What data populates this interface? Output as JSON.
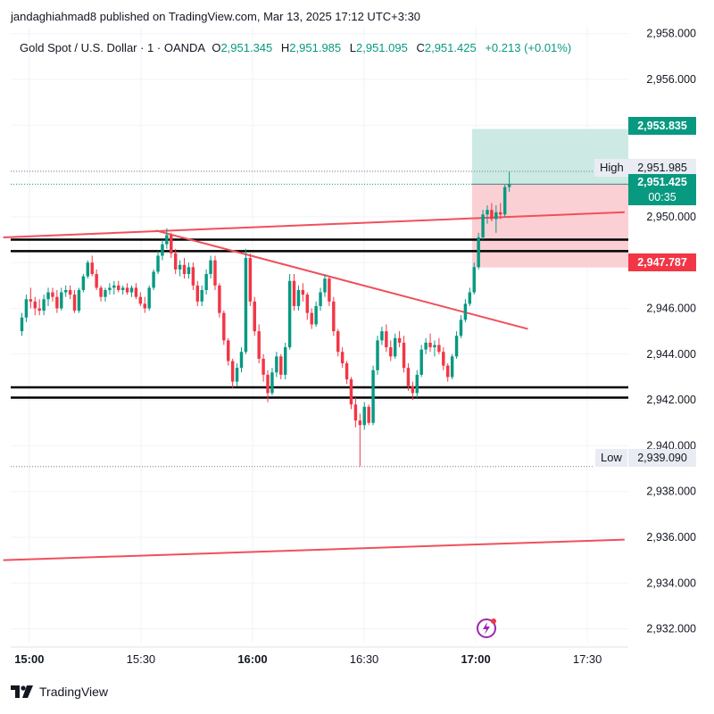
{
  "header": {
    "publisher_line": "jandaghiahmad8 published on TradingView.com, Mar 13, 2025 17:12 UTC+3:30"
  },
  "symbol": {
    "name": "Gold Spot / U.S. Dollar · 1 · OANDA",
    "o_label": "O",
    "o_value": "2,951.345",
    "h_label": "H",
    "h_value": "2,951.985",
    "l_label": "L",
    "l_value": "2,951.095",
    "c_label": "C",
    "c_value": "2,951.425",
    "change": "+0.213 (+0.01%)"
  },
  "price_tags": {
    "target": "2,953.835",
    "current": "2,951.425",
    "countdown": "00:35",
    "stop": "2,947.787"
  },
  "high": {
    "label": "High",
    "value": "2,951.985"
  },
  "low": {
    "label": "Low",
    "value": "2,939.090"
  },
  "footer": {
    "brand": "TradingView"
  },
  "colors": {
    "up": "#089981",
    "down": "#f23645",
    "trendline": "#f0505a",
    "target_zone": "#cce9e3",
    "stop_zone": "#fbd0d4",
    "level": "#000000"
  },
  "chart_data": {
    "type": "candlestick",
    "y_axis": {
      "ticks": [
        "2,958.000",
        "2,956.000",
        "2,954.000",
        "2,952.000",
        "2,950.000",
        "2,948.000",
        "2,946.000",
        "2,944.000",
        "2,942.000",
        "2,940.000",
        "2,938.000",
        "2,936.000",
        "2,934.000",
        "2,932.000"
      ],
      "tick_values": [
        2958,
        2956,
        2954,
        2952,
        2950,
        2948,
        2946,
        2944,
        2942,
        2940,
        2938,
        2936,
        2934,
        2932
      ],
      "range": [
        2931.4,
        2958.3
      ],
      "position": "right"
    },
    "x_axis": {
      "ticks": [
        "15:00",
        "15:30",
        "16:00",
        "16:30",
        "17:00",
        "17:30"
      ],
      "tick_minutes": [
        0,
        30,
        60,
        90,
        120,
        150
      ],
      "range_minutes": [
        -5,
        161
      ]
    },
    "horizontal_levels": [
      2949.0,
      2948.5,
      2942.55,
      2942.1
    ],
    "trendlines": [
      {
        "from": [
          -7,
          2949.1
        ],
        "to": [
          160,
          2950.2
        ]
      },
      {
        "from": [
          34,
          2949.4
        ],
        "to": [
          134,
          2945.1
        ]
      },
      {
        "from": [
          -7,
          2935.0
        ],
        "to": [
          160,
          2935.9
        ]
      }
    ],
    "position_tool": {
      "from_minute": 119,
      "to_minute": 161,
      "entry": 2951.425,
      "target": 2953.835,
      "stop": 2947.787
    },
    "high": 2951.985,
    "low": 2939.09,
    "candles": [
      [
        2945.0,
        2945.8,
        2944.8,
        2945.6
      ],
      [
        2945.6,
        2946.6,
        2945.4,
        2946.4
      ],
      [
        2946.4,
        2946.9,
        2946.0,
        2946.3
      ],
      [
        2946.3,
        2946.5,
        2945.7,
        2946.0
      ],
      [
        2946.0,
        2946.4,
        2945.7,
        2945.9
      ],
      [
        2945.9,
        2946.6,
        2945.7,
        2946.4
      ],
      [
        2946.4,
        2946.9,
        2946.1,
        2946.7
      ],
      [
        2946.7,
        2946.9,
        2946.3,
        2946.5
      ],
      [
        2946.5,
        2946.8,
        2945.8,
        2946.0
      ],
      [
        2946.0,
        2946.9,
        2945.9,
        2946.7
      ],
      [
        2946.7,
        2947.0,
        2946.5,
        2946.8
      ],
      [
        2946.8,
        2947.0,
        2946.4,
        2946.6
      ],
      [
        2946.6,
        2946.8,
        2945.8,
        2945.9
      ],
      [
        2945.9,
        2946.9,
        2945.8,
        2946.8
      ],
      [
        2946.8,
        2947.5,
        2946.7,
        2947.4
      ],
      [
        2947.4,
        2948.1,
        2947.3,
        2948.0
      ],
      [
        2948.0,
        2948.3,
        2947.4,
        2947.5
      ],
      [
        2947.5,
        2947.7,
        2946.8,
        2946.9
      ],
      [
        2946.9,
        2947.0,
        2946.3,
        2946.5
      ],
      [
        2946.5,
        2946.9,
        2946.3,
        2946.8
      ],
      [
        2946.8,
        2947.1,
        2946.6,
        2946.9
      ],
      [
        2946.9,
        2947.2,
        2946.6,
        2947.0
      ],
      [
        2947.0,
        2947.2,
        2946.7,
        2946.8
      ],
      [
        2946.8,
        2947.0,
        2946.6,
        2946.9
      ],
      [
        2946.9,
        2947.1,
        2946.6,
        2946.7
      ],
      [
        2946.7,
        2947.0,
        2946.5,
        2946.9
      ],
      [
        2946.9,
        2947.1,
        2946.4,
        2946.5
      ],
      [
        2946.5,
        2946.7,
        2946.1,
        2946.2
      ],
      [
        2946.2,
        2946.5,
        2945.8,
        2946.0
      ],
      [
        2946.0,
        2947.0,
        2945.9,
        2946.9
      ],
      [
        2946.9,
        2947.7,
        2946.8,
        2947.6
      ],
      [
        2947.6,
        2948.5,
        2947.5,
        2948.3
      ],
      [
        2948.3,
        2949.0,
        2948.1,
        2948.8
      ],
      [
        2948.8,
        2949.5,
        2948.6,
        2949.2
      ],
      [
        2949.2,
        2949.3,
        2948.2,
        2948.4
      ],
      [
        2948.4,
        2948.6,
        2947.5,
        2947.7
      ],
      [
        2947.7,
        2948.1,
        2947.4,
        2947.9
      ],
      [
        2947.9,
        2948.2,
        2947.3,
        2947.5
      ],
      [
        2947.5,
        2948.0,
        2947.3,
        2947.8
      ],
      [
        2947.8,
        2948.0,
        2946.8,
        2947.0
      ],
      [
        2947.0,
        2947.2,
        2946.1,
        2946.3
      ],
      [
        2946.3,
        2947.0,
        2946.1,
        2946.8
      ],
      [
        2946.8,
        2947.7,
        2946.6,
        2947.5
      ],
      [
        2947.5,
        2948.3,
        2947.3,
        2948.1
      ],
      [
        2948.1,
        2948.3,
        2946.8,
        2947.0
      ],
      [
        2947.0,
        2947.1,
        2945.6,
        2945.8
      ],
      [
        2945.8,
        2945.9,
        2944.4,
        2944.6
      ],
      [
        2944.6,
        2944.7,
        2943.5,
        2943.7
      ],
      [
        2943.7,
        2943.8,
        2942.5,
        2942.8
      ],
      [
        2942.8,
        2943.6,
        2942.6,
        2943.4
      ],
      [
        2943.4,
        2944.3,
        2943.2,
        2944.1
      ],
      [
        2944.1,
        2948.6,
        2944.0,
        2948.2
      ],
      [
        2948.2,
        2948.4,
        2946.1,
        2946.3
      ],
      [
        2946.3,
        2946.5,
        2944.8,
        2945.0
      ],
      [
        2945.0,
        2945.3,
        2943.6,
        2943.8
      ],
      [
        2943.8,
        2944.0,
        2942.8,
        2943.1
      ],
      [
        2943.1,
        2943.3,
        2941.9,
        2942.3
      ],
      [
        2942.3,
        2943.4,
        2942.2,
        2943.2
      ],
      [
        2943.2,
        2944.1,
        2943.0,
        2943.9
      ],
      [
        2943.9,
        2944.0,
        2942.9,
        2943.1
      ],
      [
        2943.1,
        2944.5,
        2942.9,
        2944.3
      ],
      [
        2944.3,
        2947.5,
        2944.2,
        2947.2
      ],
      [
        2947.2,
        2947.5,
        2945.9,
        2946.1
      ],
      [
        2946.1,
        2947.0,
        2945.9,
        2946.8
      ],
      [
        2946.8,
        2947.1,
        2946.3,
        2946.6
      ],
      [
        2946.6,
        2946.7,
        2945.5,
        2945.8
      ],
      [
        2945.8,
        2946.0,
        2945.1,
        2945.3
      ],
      [
        2945.3,
        2946.3,
        2945.2,
        2946.1
      ],
      [
        2946.1,
        2946.9,
        2945.9,
        2946.7
      ],
      [
        2946.7,
        2947.5,
        2946.5,
        2947.3
      ],
      [
        2947.3,
        2947.4,
        2946.1,
        2946.3
      ],
      [
        2946.3,
        2946.5,
        2944.8,
        2945.0
      ],
      [
        2945.0,
        2945.1,
        2943.9,
        2944.1
      ],
      [
        2944.1,
        2944.3,
        2943.4,
        2943.6
      ],
      [
        2943.6,
        2943.7,
        2942.7,
        2942.9
      ],
      [
        2942.9,
        2943.0,
        2941.6,
        2941.8
      ],
      [
        2941.8,
        2942.1,
        2940.8,
        2941.1
      ],
      [
        2941.1,
        2941.4,
        2939.1,
        2940.9
      ],
      [
        2940.9,
        2941.9,
        2940.7,
        2941.7
      ],
      [
        2941.7,
        2941.8,
        2940.9,
        2941.0
      ],
      [
        2941.0,
        2943.5,
        2940.9,
        2943.3
      ],
      [
        2943.3,
        2944.8,
        2943.1,
        2944.6
      ],
      [
        2944.6,
        2945.2,
        2944.4,
        2945.0
      ],
      [
        2945.0,
        2945.3,
        2944.1,
        2944.3
      ],
      [
        2944.3,
        2944.6,
        2943.7,
        2943.9
      ],
      [
        2943.9,
        2944.9,
        2943.8,
        2944.7
      ],
      [
        2944.7,
        2945.0,
        2944.3,
        2944.5
      ],
      [
        2944.5,
        2944.8,
        2943.2,
        2943.4
      ],
      [
        2943.4,
        2943.6,
        2942.4,
        2942.6
      ],
      [
        2942.6,
        2942.8,
        2942.0,
        2942.3
      ],
      [
        2942.3,
        2943.3,
        2942.1,
        2943.1
      ],
      [
        2943.1,
        2944.4,
        2943.0,
        2944.2
      ],
      [
        2944.2,
        2944.7,
        2944.0,
        2944.5
      ],
      [
        2944.5,
        2944.9,
        2944.1,
        2944.3
      ],
      [
        2944.3,
        2944.6,
        2943.9,
        2944.4
      ],
      [
        2944.4,
        2944.7,
        2944.0,
        2944.1
      ],
      [
        2944.1,
        2944.3,
        2943.3,
        2943.5
      ],
      [
        2943.5,
        2943.6,
        2942.8,
        2943.0
      ],
      [
        2943.0,
        2944.0,
        2942.9,
        2943.9
      ],
      [
        2943.9,
        2945.0,
        2943.8,
        2944.8
      ],
      [
        2944.8,
        2945.7,
        2944.7,
        2945.5
      ],
      [
        2945.5,
        2946.4,
        2945.4,
        2946.2
      ],
      [
        2946.2,
        2946.9,
        2946.1,
        2946.7
      ],
      [
        2946.7,
        2948.0,
        2946.6,
        2947.8
      ],
      [
        2947.8,
        2949.3,
        2947.7,
        2949.1
      ],
      [
        2949.1,
        2950.3,
        2949.0,
        2950.1
      ],
      [
        2950.1,
        2950.5,
        2949.7,
        2950.3
      ],
      [
        2950.3,
        2950.6,
        2949.8,
        2949.9
      ],
      [
        2949.9,
        2950.5,
        2949.3,
        2950.2
      ],
      [
        2950.2,
        2950.6,
        2949.9,
        2950.1
      ],
      [
        2950.1,
        2951.4,
        2950.0,
        2951.3
      ],
      [
        2951.3,
        2951.985,
        2951.095,
        2951.425
      ]
    ]
  }
}
